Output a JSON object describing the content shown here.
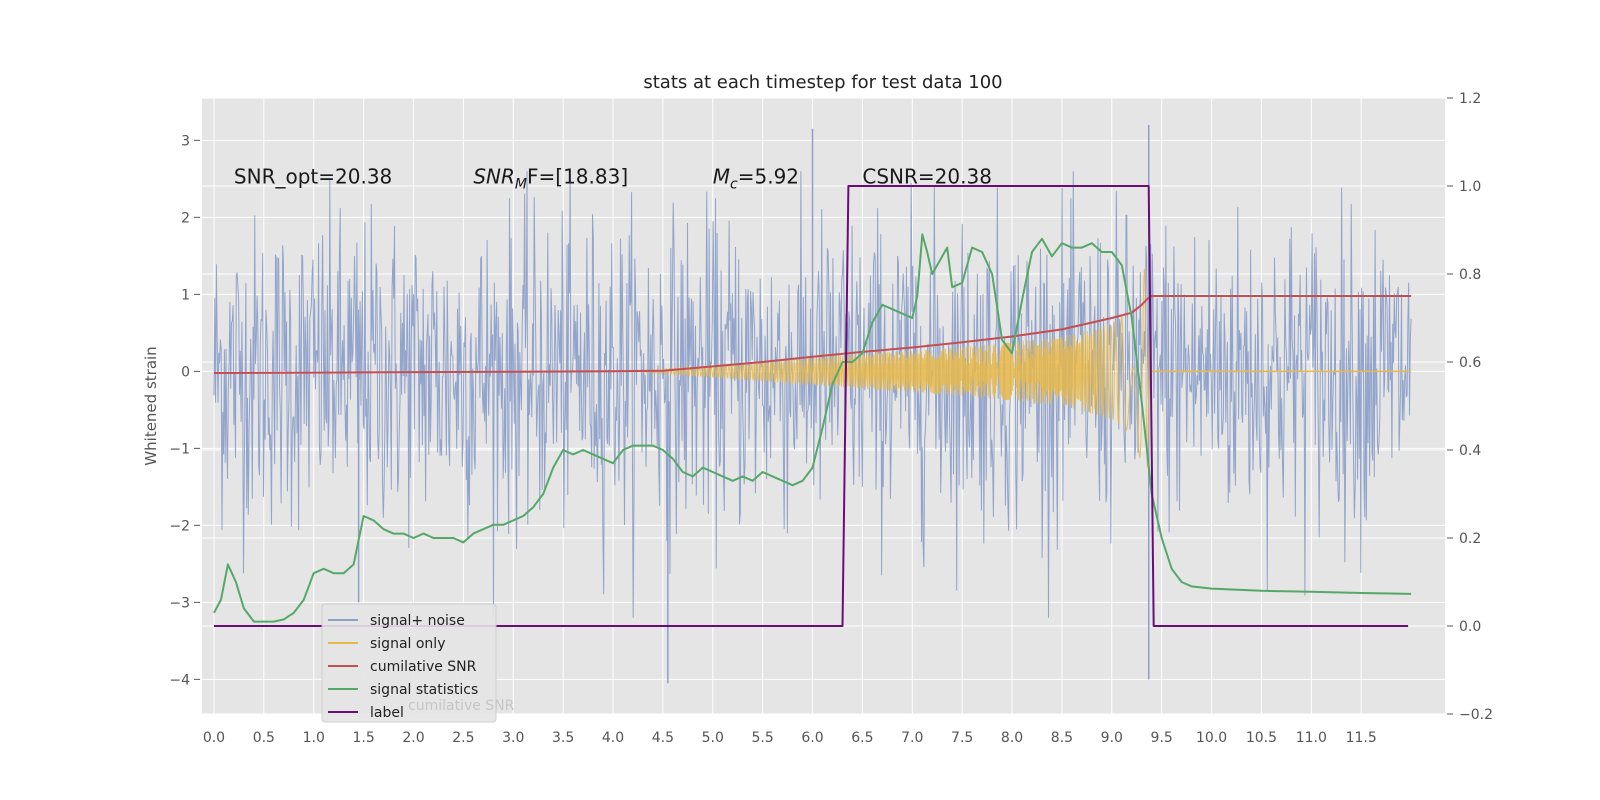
{
  "chart_data": {
    "type": "line",
    "title": "stats at each timestep for test data 100",
    "ylabel": "Whitened strain",
    "xlim": [
      -0.12,
      12.34
    ],
    "ylim": [
      -4.45,
      3.55
    ],
    "y2lim": [
      -0.2,
      1.2
    ],
    "x_ticks": [
      0,
      0.5,
      1,
      1.5,
      2,
      2.5,
      3,
      3.5,
      4,
      4.5,
      5,
      5.5,
      6,
      6.5,
      7,
      7.5,
      8,
      8.5,
      9,
      9.5,
      10,
      10.5,
      11,
      11.5
    ],
    "x_tick_labels": [
      "0.0",
      "0.5",
      "1.0",
      "1.5",
      "2.0",
      "2.5",
      "3.0",
      "3.5",
      "4.0",
      "4.5",
      "5.0",
      "5.5",
      "6.0",
      "6.5",
      "7.0",
      "7.5",
      "8.0",
      "8.5",
      "9.0",
      "9.5",
      "10.0",
      "10.5",
      "11.0",
      "11.5"
    ],
    "y_ticks": [
      3,
      2,
      1,
      0,
      -1,
      -2,
      -3,
      -4
    ],
    "y_tick_labels": [
      "3",
      "2",
      "1",
      "0",
      "−1",
      "−2",
      "−3",
      "−4"
    ],
    "y2_ticks": [
      1.2,
      1.0,
      0.8,
      0.6,
      0.4,
      0.2,
      0.0,
      -0.2
    ],
    "y2_tick_labels": [
      "1.2",
      "1.0",
      "0.8",
      "0.6",
      "0.4",
      "0.2",
      "0.0",
      "−0.2"
    ],
    "grid": true,
    "legend_position": "lower-left",
    "annotations": [
      {
        "text": "SNR_opt=20.38",
        "x": 0.2,
        "y": 2.53
      },
      {
        "text_base": "SNR",
        "text_sub": "M",
        "text_rest": "F=[18.83]",
        "x": 2.6,
        "y": 2.53
      },
      {
        "text_base": "M",
        "text_sub": "c",
        "text_rest": "=5.92",
        "x": 5.0,
        "y": 2.53
      },
      {
        "text": "CSNR=20.38",
        "x": 6.5,
        "y": 2.53
      }
    ],
    "series": [
      {
        "name": "signal+ noise",
        "color": "#8da0c9",
        "axis": "left",
        "kind": "noise",
        "x_range": [
          0,
          12
        ],
        "noise_sigma": 1.0,
        "extremes": [
          [
            4.55,
            -4.05
          ],
          [
            6.0,
            3.15
          ],
          [
            9.37,
            3.2
          ],
          [
            9.37,
            -4.0
          ],
          [
            1.45,
            -3.0
          ]
        ]
      },
      {
        "name": "signal only",
        "color": "#e8b94a",
        "axis": "left",
        "kind": "chirp",
        "x": [
          4.2,
          5.0,
          5.5,
          6.0,
          6.5,
          7.0,
          7.5,
          8.0,
          8.5,
          9.0,
          9.2,
          9.3,
          9.35,
          9.4
        ],
        "envelope": [
          0.0,
          0.08,
          0.13,
          0.18,
          0.23,
          0.27,
          0.32,
          0.38,
          0.45,
          0.62,
          0.82,
          1.2,
          1.45,
          0.0
        ]
      },
      {
        "name": "cumilative SNR",
        "color": "#c44e52",
        "axis": "right",
        "x": [
          0,
          1,
          2,
          3,
          4,
          4.5,
          5,
          5.5,
          6,
          6.5,
          7,
          7.5,
          8,
          8.5,
          9,
          9.2,
          9.3,
          9.35,
          9.4,
          12
        ],
        "values": [
          0.575,
          0.576,
          0.577,
          0.578,
          0.579,
          0.58,
          0.59,
          0.6,
          0.612,
          0.623,
          0.633,
          0.645,
          0.658,
          0.674,
          0.7,
          0.712,
          0.73,
          0.742,
          0.75,
          0.75
        ]
      },
      {
        "name": "signal statistics",
        "color": "#55a868",
        "axis": "right",
        "x": [
          0,
          0.07,
          0.14,
          0.22,
          0.3,
          0.4,
          0.5,
          0.6,
          0.7,
          0.8,
          0.9,
          1.0,
          1.1,
          1.2,
          1.3,
          1.4,
          1.5,
          1.6,
          1.7,
          1.8,
          1.9,
          2.0,
          2.1,
          2.2,
          2.3,
          2.4,
          2.5,
          2.6,
          2.7,
          2.8,
          2.9,
          3.0,
          3.1,
          3.2,
          3.3,
          3.4,
          3.5,
          3.6,
          3.7,
          3.8,
          3.9,
          4.0,
          4.1,
          4.2,
          4.3,
          4.4,
          4.5,
          4.6,
          4.7,
          4.8,
          4.9,
          5.0,
          5.1,
          5.2,
          5.3,
          5.4,
          5.5,
          5.6,
          5.7,
          5.8,
          5.9,
          6.0,
          6.1,
          6.2,
          6.3,
          6.4,
          6.5,
          6.6,
          6.7,
          6.8,
          6.9,
          7.0,
          7.05,
          7.1,
          7.15,
          7.2,
          7.25,
          7.3,
          7.35,
          7.4,
          7.5,
          7.6,
          7.7,
          7.8,
          7.9,
          8.0,
          8.1,
          8.2,
          8.3,
          8.4,
          8.5,
          8.6,
          8.7,
          8.8,
          8.9,
          9.0,
          9.1,
          9.2,
          9.3,
          9.4,
          9.5,
          9.6,
          9.7,
          9.8,
          10.0,
          10.5,
          11.0,
          11.5,
          12.0
        ],
        "values": [
          0.03,
          0.06,
          0.14,
          0.1,
          0.04,
          0.01,
          0.01,
          0.01,
          0.015,
          0.03,
          0.06,
          0.12,
          0.13,
          0.12,
          0.12,
          0.14,
          0.25,
          0.24,
          0.22,
          0.21,
          0.21,
          0.2,
          0.21,
          0.2,
          0.2,
          0.2,
          0.19,
          0.21,
          0.22,
          0.23,
          0.23,
          0.24,
          0.25,
          0.27,
          0.3,
          0.36,
          0.4,
          0.39,
          0.4,
          0.39,
          0.38,
          0.37,
          0.4,
          0.41,
          0.41,
          0.41,
          0.4,
          0.38,
          0.35,
          0.34,
          0.36,
          0.35,
          0.34,
          0.33,
          0.34,
          0.33,
          0.35,
          0.34,
          0.33,
          0.32,
          0.33,
          0.36,
          0.45,
          0.55,
          0.6,
          0.6,
          0.62,
          0.69,
          0.73,
          0.72,
          0.71,
          0.7,
          0.75,
          0.89,
          0.85,
          0.8,
          0.82,
          0.84,
          0.86,
          0.77,
          0.78,
          0.86,
          0.85,
          0.8,
          0.65,
          0.62,
          0.74,
          0.85,
          0.88,
          0.84,
          0.87,
          0.86,
          0.86,
          0.87,
          0.85,
          0.85,
          0.82,
          0.7,
          0.51,
          0.3,
          0.2,
          0.13,
          0.1,
          0.09,
          0.085,
          0.08,
          0.078,
          0.075,
          0.073
        ]
      },
      {
        "name": "label",
        "color": "#6a0d79",
        "axis": "right",
        "x": [
          0,
          6.3,
          6.36,
          9.37,
          9.42,
          11.97
        ],
        "values": [
          0,
          0,
          1,
          1,
          0,
          0
        ]
      }
    ],
    "legend_ghost_text": "cumilative SNR"
  }
}
